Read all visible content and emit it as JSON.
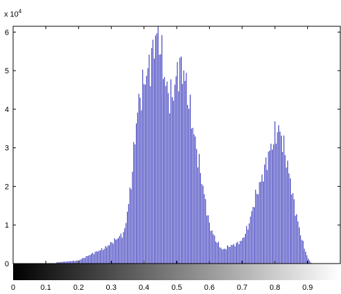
{
  "chart_data": {
    "type": "bar",
    "title": "",
    "xlabel": "",
    "ylabel": "",
    "xlim": [
      0,
      1
    ],
    "ylim": [
      0,
      61500
    ],
    "y_exponent_label": "x 10",
    "y_exponent_power": "4",
    "x_ticks": [
      0,
      0.1,
      0.2,
      0.3,
      0.4,
      0.5,
      0.6,
      0.7,
      0.8,
      0.9
    ],
    "x_tick_labels": [
      "0",
      "0.1",
      "0.2",
      "0.3",
      "0.4",
      "0.5",
      "0.6",
      "0.7",
      "0.8",
      "0.9"
    ],
    "y_ticks": [
      0,
      10000,
      20000,
      30000,
      40000,
      50000,
      60000
    ],
    "y_tick_labels": [
      "0",
      "1",
      "2",
      "3",
      "4",
      "5",
      "6"
    ],
    "bar_color": "#1f1fb4",
    "grid": false,
    "colorbar": "grayscale gradient black to white along x",
    "curve_x": [
      0.13,
      0.2,
      0.24,
      0.28,
      0.31,
      0.34,
      0.36,
      0.38,
      0.4,
      0.42,
      0.43,
      0.44,
      0.45,
      0.46,
      0.47,
      0.48,
      0.49,
      0.5,
      0.51,
      0.52,
      0.53,
      0.54,
      0.56,
      0.58,
      0.6,
      0.62,
      0.64,
      0.66,
      0.68,
      0.7,
      0.72,
      0.74,
      0.76,
      0.78,
      0.8,
      0.81,
      0.82,
      0.84,
      0.86,
      0.88,
      0.9,
      0.91
    ],
    "curve_y": [
      300,
      800,
      2500,
      4000,
      6000,
      8000,
      20000,
      40000,
      47000,
      52000,
      56000,
      61000,
      57000,
      50000,
      45000,
      43000,
      44000,
      49000,
      51000,
      50000,
      46000,
      40000,
      30000,
      20000,
      10000,
      6000,
      3500,
      4500,
      5000,
      6000,
      10000,
      17000,
      22000,
      28000,
      33000,
      35000,
      33000,
      25000,
      15000,
      7000,
      1500,
      300
    ],
    "n_bins": 256
  }
}
